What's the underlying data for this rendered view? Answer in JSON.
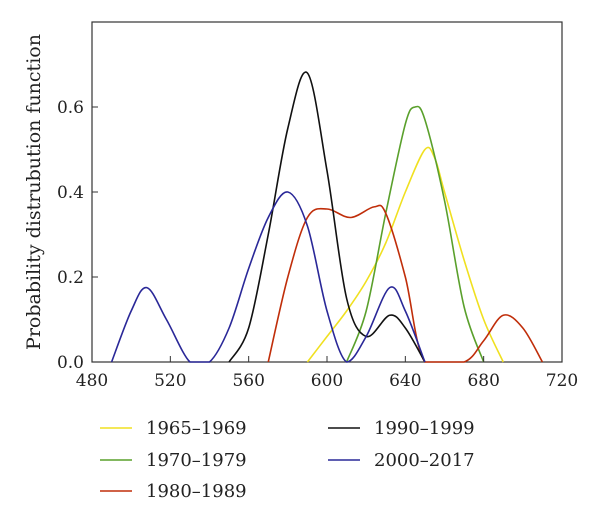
{
  "chart_data": {
    "type": "line",
    "title": "",
    "xlabel": "",
    "ylabel": "Probability distrubution function",
    "xlim": [
      480,
      720
    ],
    "ylim": [
      0,
      0.8
    ],
    "x_ticks": [
      480,
      520,
      560,
      600,
      640,
      680,
      720
    ],
    "x_tick_labels": [
      "480",
      "520",
      "560",
      "600",
      "640",
      "680",
      "720"
    ],
    "y_ticks": [
      0,
      0.2,
      0.4,
      0.6
    ],
    "y_tick_labels": [
      "0.0",
      "0.2",
      "0.4",
      "0.6"
    ],
    "grid": false,
    "legend_position": "bottom",
    "series": [
      {
        "name": "1965–1969",
        "color": "#f0e020",
        "points": [
          [
            590,
            0
          ],
          [
            600,
            0.06
          ],
          [
            610,
            0.12
          ],
          [
            620,
            0.19
          ],
          [
            630,
            0.28
          ],
          [
            640,
            0.4
          ],
          [
            650,
            0.5
          ],
          [
            655,
            0.48
          ],
          [
            660,
            0.4
          ],
          [
            670,
            0.24
          ],
          [
            680,
            0.1
          ],
          [
            690,
            0
          ]
        ]
      },
      {
        "name": "1970–1979",
        "color": "#5aa02c",
        "points": [
          [
            610,
            0
          ],
          [
            620,
            0.12
          ],
          [
            630,
            0.35
          ],
          [
            640,
            0.56
          ],
          [
            645,
            0.6
          ],
          [
            650,
            0.57
          ],
          [
            660,
            0.38
          ],
          [
            670,
            0.13
          ],
          [
            680,
            0
          ]
        ]
      },
      {
        "name": "1980–1989",
        "color": "#c02e0a",
        "points": [
          [
            570,
            0
          ],
          [
            580,
            0.2
          ],
          [
            590,
            0.34
          ],
          [
            600,
            0.36
          ],
          [
            612,
            0.34
          ],
          [
            624,
            0.365
          ],
          [
            630,
            0.35
          ],
          [
            640,
            0.2
          ],
          [
            650,
            0
          ],
          [
            670,
            0
          ],
          [
            680,
            0.05
          ],
          [
            690,
            0.11
          ],
          [
            700,
            0.08
          ],
          [
            710,
            0
          ]
        ]
      },
      {
        "name": "1990–1999",
        "color": "#111111",
        "points": [
          [
            550,
            0
          ],
          [
            560,
            0.08
          ],
          [
            570,
            0.3
          ],
          [
            580,
            0.55
          ],
          [
            590,
            0.68
          ],
          [
            600,
            0.45
          ],
          [
            610,
            0.15
          ],
          [
            620,
            0.06
          ],
          [
            632,
            0.11
          ],
          [
            640,
            0.08
          ],
          [
            650,
            0
          ]
        ]
      },
      {
        "name": "2000–2017",
        "color": "#2a2898",
        "points": [
          [
            490,
            0
          ],
          [
            500,
            0.12
          ],
          [
            508,
            0.175
          ],
          [
            518,
            0.1
          ],
          [
            530,
            0
          ],
          [
            540,
            0
          ],
          [
            550,
            0.08
          ],
          [
            560,
            0.22
          ],
          [
            570,
            0.34
          ],
          [
            580,
            0.4
          ],
          [
            590,
            0.32
          ],
          [
            600,
            0.12
          ],
          [
            610,
            0
          ],
          [
            620,
            0.06
          ],
          [
            632,
            0.175
          ],
          [
            640,
            0.12
          ],
          [
            650,
            0
          ]
        ]
      }
    ]
  }
}
